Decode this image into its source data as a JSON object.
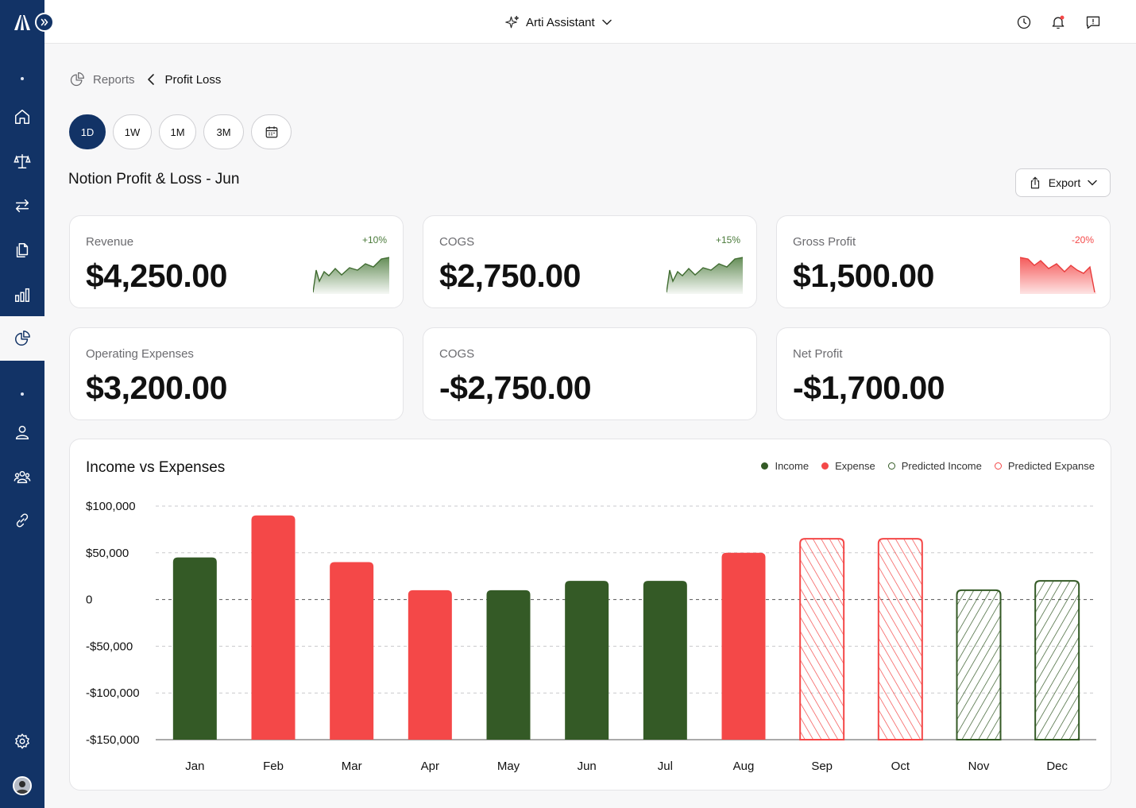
{
  "app": {
    "assistant_label": "Arti Assistant"
  },
  "sidebar": {
    "items": [
      {
        "name": "home-icon"
      },
      {
        "name": "scale-icon"
      },
      {
        "name": "transfer-icon"
      },
      {
        "name": "documents-icon"
      },
      {
        "name": "bar-chart-icon"
      },
      {
        "name": "pie-chart-icon",
        "active": true
      },
      {
        "name": "user-icon"
      },
      {
        "name": "team-icon"
      },
      {
        "name": "link-icon"
      },
      {
        "name": "settings-icon"
      }
    ]
  },
  "breadcrumb": {
    "parent": "Reports",
    "current": "Profit Loss"
  },
  "ranges": [
    "1D",
    "1W",
    "1M",
    "3M"
  ],
  "selected_range": "1D",
  "page_title": "Notion Profit & Loss - Jun",
  "export_label": "Export",
  "cards": [
    {
      "label": "Revenue",
      "value": "$4,250.00",
      "change": "+10%",
      "trend": "up"
    },
    {
      "label": "COGS",
      "value": "$2,750.00",
      "change": "+15%",
      "trend": "up"
    },
    {
      "label": "Gross Profit",
      "value": "$1,500.00",
      "change": "-20%",
      "trend": "down"
    },
    {
      "label": "Operating Expenses",
      "value": "$3,200.00"
    },
    {
      "label": "COGS",
      "value": "-$2,750.00"
    },
    {
      "label": "Net Profit",
      "value": "-$1,700.00"
    }
  ],
  "colors": {
    "navy": "#123366",
    "income": "#345a26",
    "expense": "#f44848",
    "positive": "#4a7a3a",
    "negative": "#f44848"
  },
  "chart_data": {
    "type": "bar",
    "title": "Income vs Expenses",
    "legend": [
      {
        "label": "Income",
        "style": "filled",
        "color": "#345a26"
      },
      {
        "label": "Expense",
        "style": "filled",
        "color": "#f44848"
      },
      {
        "label": "Predicted Income",
        "style": "outline",
        "color": "#345a26"
      },
      {
        "label": "Predicted Expanse",
        "style": "outline",
        "color": "#f44848"
      }
    ],
    "legend_position": "top-right",
    "y_ticks": [
      100000,
      50000,
      0,
      -50000,
      -100000,
      -150000
    ],
    "y_tick_labels": [
      "$100,000",
      "$50,000",
      "0",
      "-$50,000",
      "-$100,000",
      "-$150,000"
    ],
    "ylim": [
      -150000,
      100000
    ],
    "grid": true,
    "categories": [
      "Jan",
      "Feb",
      "Mar",
      "Apr",
      "May",
      "Jun",
      "Jul",
      "Aug",
      "Sep",
      "Oct",
      "Nov",
      "Dec"
    ],
    "values": [
      45000,
      90000,
      40000,
      10000,
      10000,
      20000,
      20000,
      50000,
      65000,
      65000,
      10000,
      20000
    ],
    "kinds": [
      "income",
      "expense",
      "expense",
      "expense",
      "income",
      "income",
      "income",
      "expense",
      "predicted_expense",
      "predicted_expense",
      "predicted_income",
      "predicted_income"
    ]
  }
}
